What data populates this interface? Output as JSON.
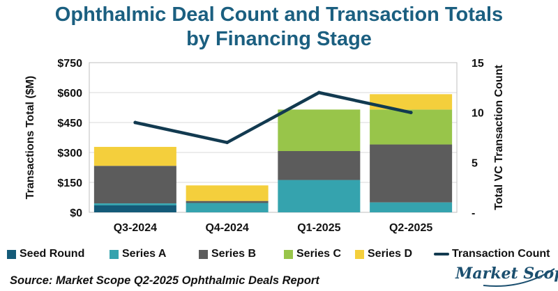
{
  "title_line1": "Ophthalmic Deal Count and Transaction Totals",
  "title_line2": "by Financing Stage",
  "colors": {
    "title": "#1b5f80",
    "seed": "#145a78",
    "series_a": "#35a3ae",
    "series_b": "#5c5c5c",
    "series_c": "#98c54a",
    "series_d": "#f4cf3c",
    "line": "#123a50",
    "logo": "#1b4f6f"
  },
  "chart_data": {
    "type": "bar",
    "stacked": true,
    "categories": [
      "Q3-2024",
      "Q4-2024",
      "Q1-2025",
      "Q2-2025"
    ],
    "series": [
      {
        "name": "Seed Round",
        "key": "seed",
        "values": [
          35,
          0,
          0,
          0
        ]
      },
      {
        "name": "Series A",
        "key": "series_a",
        "values": [
          10,
          47,
          162,
          50
        ]
      },
      {
        "name": "Series B",
        "key": "series_b",
        "values": [
          188,
          10,
          145,
          290
        ]
      },
      {
        "name": "Series C",
        "key": "series_c",
        "values": [
          0,
          0,
          208,
          175
        ]
      },
      {
        "name": "Series D",
        "key": "series_d",
        "values": [
          95,
          78,
          0,
          77
        ]
      }
    ],
    "line_series": {
      "name": "Transaction Count",
      "values": [
        9,
        7,
        12,
        10
      ]
    },
    "ylabel": "Transactions Total ($M)",
    "y2label": "Total VC Transaction Count",
    "ylim": [
      0,
      750
    ],
    "y2lim": [
      0,
      15
    ],
    "yticks": [
      0,
      150,
      300,
      450,
      600,
      750
    ],
    "ytick_labels": [
      "$0",
      "$150",
      "$300",
      "$450",
      "$600",
      "$750"
    ],
    "y2ticks": [
      0,
      5,
      10,
      15
    ],
    "y2tick_labels": [
      "-",
      "5",
      "10",
      "15"
    ],
    "grid": true,
    "legend_position": "bottom"
  },
  "source": "Source: Market Scope Q2-2025 Ophthalmic Deals Report",
  "logo_text": "Market Scope"
}
